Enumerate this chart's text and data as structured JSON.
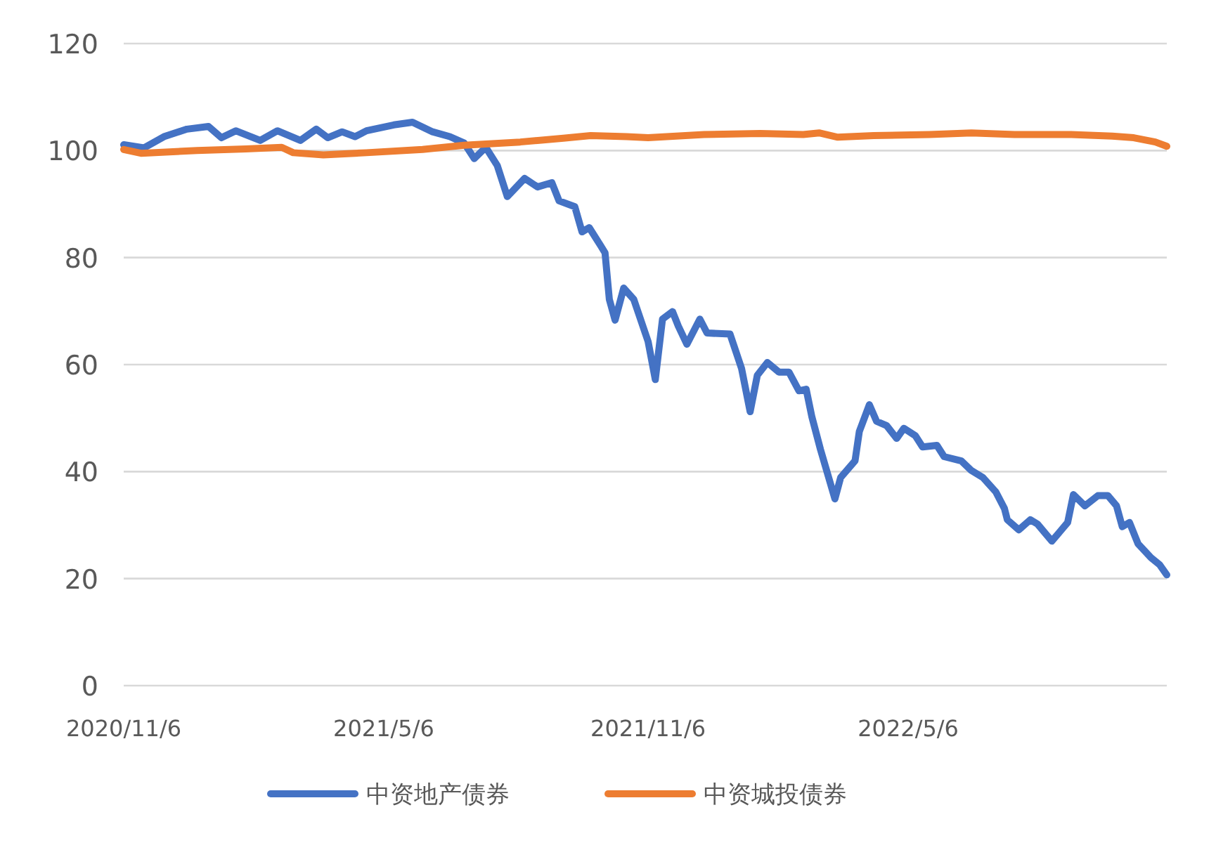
{
  "chart_data": {
    "type": "line",
    "xlim": [
      "2020-11-06",
      "2022-11-02"
    ],
    "ylim": [
      0,
      120
    ],
    "yticks": [
      0,
      20,
      40,
      60,
      80,
      100,
      120
    ],
    "xticks": [
      {
        "value": "2020-11-06",
        "label": "2020/11/6"
      },
      {
        "value": "2021-05-06",
        "label": "2021/5/6"
      },
      {
        "value": "2021-11-06",
        "label": "2021/11/6"
      },
      {
        "value": "2022-05-06",
        "label": "2022/5/6"
      }
    ],
    "grid": "y",
    "legend": "bottom",
    "series": [
      {
        "name": "中资地产债券",
        "color": "#4472c4",
        "x": [
          "2020-11-06",
          "2020-11-20",
          "2020-12-04",
          "2020-12-20",
          "2021-01-04",
          "2021-01-13",
          "2021-01-23",
          "2021-02-09",
          "2021-02-21",
          "2021-03-09",
          "2021-03-20",
          "2021-03-28",
          "2021-04-07",
          "2021-04-16",
          "2021-04-24",
          "2021-05-13",
          "2021-05-26",
          "2021-06-09",
          "2021-06-21",
          "2021-07-01",
          "2021-07-08",
          "2021-07-16",
          "2021-07-24",
          "2021-07-31",
          "2021-08-12",
          "2021-08-21",
          "2021-08-31",
          "2021-09-05",
          "2021-09-16",
          "2021-09-21",
          "2021-09-26",
          "2021-10-04",
          "2021-10-07",
          "2021-10-10",
          "2021-10-14",
          "2021-10-20",
          "2021-10-27",
          "2021-11-06",
          "2021-11-11",
          "2021-11-16",
          "2021-11-23",
          "2021-11-27",
          "2021-12-03",
          "2021-12-12",
          "2021-12-17",
          "2022-01-02",
          "2022-01-05",
          "2022-01-10",
          "2022-01-16",
          "2022-01-21",
          "2022-01-28",
          "2022-02-05",
          "2022-02-12",
          "2022-02-19",
          "2022-02-24",
          "2022-02-28",
          "2022-03-06",
          "2022-03-16",
          "2022-03-20",
          "2022-03-30",
          "2022-04-02",
          "2022-04-09",
          "2022-04-14",
          "2022-04-21",
          "2022-04-28",
          "2022-05-03",
          "2022-05-11",
          "2022-05-16",
          "2022-05-26",
          "2022-05-31",
          "2022-06-12",
          "2022-06-19",
          "2022-06-27",
          "2022-07-06",
          "2022-07-12",
          "2022-07-14",
          "2022-07-22",
          "2022-07-30",
          "2022-08-04",
          "2022-08-14",
          "2022-08-20",
          "2022-08-25",
          "2022-08-29",
          "2022-09-06",
          "2022-09-15",
          "2022-09-22",
          "2022-09-28",
          "2022-10-02",
          "2022-10-07",
          "2022-10-13",
          "2022-10-22",
          "2022-10-28",
          "2022-11-02"
        ],
        "values": [
          101.1,
          100.5,
          102.6,
          104,
          104.5,
          102.4,
          103.7,
          101.9,
          103.7,
          101.9,
          104,
          102.4,
          103.5,
          102.6,
          103.7,
          104.8,
          105.3,
          103.5,
          102.6,
          101.4,
          98.5,
          100.6,
          97.2,
          91.4,
          94.8,
          93.2,
          94,
          90.6,
          89.5,
          84.8,
          85.6,
          82.2,
          80.9,
          72.2,
          68.3,
          74.3,
          72.2,
          64.3,
          57.2,
          68.5,
          69.9,
          67.2,
          63.8,
          68.5,
          65.9,
          65.7,
          63.3,
          59.3,
          51.2,
          58.0,
          60.4,
          58.6,
          58.6,
          55.1,
          55.4,
          50.2,
          44.1,
          34.9,
          38.9,
          42.0,
          47.5,
          52.5,
          49.4,
          48.6,
          46.2,
          48.1,
          46.7,
          44.6,
          44.9,
          42.8,
          42.0,
          40.2,
          38.9,
          36.2,
          33.1,
          31.0,
          29.1,
          31.0,
          30.2,
          27.0,
          28.9,
          30.5,
          35.7,
          33.6,
          35.5,
          35.5,
          33.6,
          29.7,
          30.5,
          26.5,
          23.9,
          22.6,
          20.7
        ]
      },
      {
        "name": "中资城投债券",
        "color": "#ed7d31",
        "x": [
          "2020-11-06",
          "2020-11-18",
          "2020-12-27",
          "2021-01-30",
          "2021-02-24",
          "2021-03-04",
          "2021-03-25",
          "2021-04-24",
          "2021-06-02",
          "2021-07-01",
          "2021-08-09",
          "2021-09-08",
          "2021-09-27",
          "2021-10-22",
          "2021-11-06",
          "2021-12-15",
          "2022-01-23",
          "2022-02-22",
          "2022-03-05",
          "2022-03-18",
          "2022-04-12",
          "2022-05-21",
          "2022-06-19",
          "2022-07-19",
          "2022-08-27",
          "2022-09-25",
          "2022-10-10",
          "2022-10-25",
          "2022-11-02"
        ],
        "values": [
          100.2,
          99.5,
          100.0,
          100.3,
          100.6,
          99.6,
          99.2,
          99.6,
          100.2,
          101.0,
          101.6,
          102.3,
          102.8,
          102.6,
          102.4,
          103.0,
          103.2,
          103.0,
          103.3,
          102.5,
          102.8,
          103.0,
          103.3,
          103.0,
          103.0,
          102.7,
          102.4,
          101.6,
          100.8
        ]
      }
    ]
  }
}
